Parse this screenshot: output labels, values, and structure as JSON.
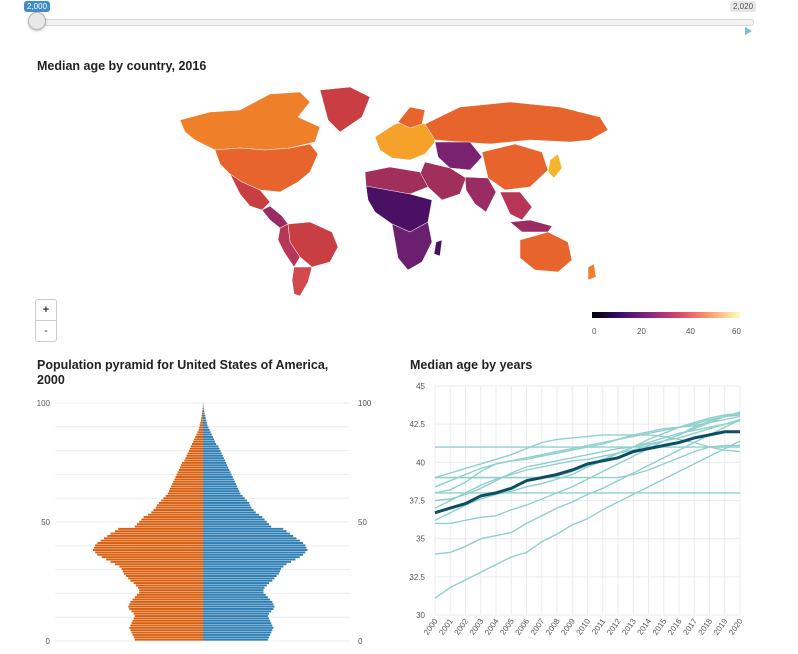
{
  "slider": {
    "min_label": "2,000",
    "max_label": "2,020"
  },
  "map": {
    "title": "Median age by country, 2016",
    "zoom_in": "+",
    "zoom_out": "-",
    "legend": {
      "ticks": [
        "0",
        "20",
        "40",
        "60"
      ]
    }
  },
  "pyramid": {
    "title": "Population pyramid for United States of America, 2000",
    "colors": {
      "left": "#d95f0e",
      "right": "#2f7fb5"
    },
    "y_ticks": [
      "0",
      "50",
      "100"
    ]
  },
  "chart_data": [
    {
      "type": "bar",
      "title": "Population pyramid for United States of America, 2000",
      "orientation": "horizontal-mirrored",
      "ylim": [
        0,
        100
      ],
      "series": [
        {
          "values": [
            0.62,
            0.63,
            0.64,
            0.65,
            0.66,
            0.67,
            0.66,
            0.65,
            0.64,
            0.63,
            0.62,
            0.63,
            0.65,
            0.67,
            0.68,
            0.67,
            0.66,
            0.64,
            0.62,
            0.6,
            0.58,
            0.58,
            0.59,
            0.61,
            0.63,
            0.66,
            0.68,
            0.7,
            0.72,
            0.73,
            0.74,
            0.76,
            0.8,
            0.84,
            0.88,
            0.92,
            0.96,
            0.98,
            1.0,
            0.99,
            0.98,
            0.96,
            0.93,
            0.9,
            0.87,
            0.84,
            0.8,
            0.77,
            0.62,
            0.6,
            0.58,
            0.56,
            0.54,
            0.5,
            0.47,
            0.45,
            0.43,
            0.42,
            0.4,
            0.38,
            0.36,
            0.34,
            0.32,
            0.31,
            0.3,
            0.29,
            0.28,
            0.27,
            0.26,
            0.25,
            0.24,
            0.23,
            0.22,
            0.21,
            0.2,
            0.19,
            0.17,
            0.16,
            0.15,
            0.14,
            0.13,
            0.12,
            0.11,
            0.1,
            0.09,
            0.08,
            0.07,
            0.06,
            0.05,
            0.04,
            0.035,
            0.03,
            0.025,
            0.02,
            0.016,
            0.012,
            0.009,
            0.006,
            0.004,
            0.002,
            0.001
          ]
        },
        {
          "values": [
            0.59,
            0.6,
            0.61,
            0.62,
            0.63,
            0.64,
            0.63,
            0.62,
            0.61,
            0.6,
            0.59,
            0.6,
            0.62,
            0.64,
            0.65,
            0.64,
            0.63,
            0.61,
            0.59,
            0.57,
            0.55,
            0.55,
            0.56,
            0.58,
            0.6,
            0.63,
            0.65,
            0.67,
            0.69,
            0.7,
            0.71,
            0.73,
            0.76,
            0.8,
            0.84,
            0.88,
            0.91,
            0.93,
            0.95,
            0.94,
            0.93,
            0.91,
            0.88,
            0.85,
            0.82,
            0.79,
            0.76,
            0.73,
            0.62,
            0.6,
            0.58,
            0.56,
            0.54,
            0.51,
            0.48,
            0.46,
            0.44,
            0.43,
            0.42,
            0.4,
            0.38,
            0.36,
            0.34,
            0.33,
            0.32,
            0.31,
            0.3,
            0.29,
            0.28,
            0.27,
            0.26,
            0.25,
            0.24,
            0.23,
            0.22,
            0.21,
            0.2,
            0.19,
            0.18,
            0.17,
            0.16,
            0.15,
            0.14,
            0.12,
            0.11,
            0.1,
            0.09,
            0.08,
            0.07,
            0.06,
            0.05,
            0.04,
            0.035,
            0.03,
            0.025,
            0.02,
            0.015,
            0.01,
            0.007,
            0.004,
            0.002
          ]
        }
      ]
    },
    {
      "type": "line",
      "title": "Median age by years",
      "x": [
        2000,
        2001,
        2002,
        2003,
        2004,
        2005,
        2006,
        2007,
        2008,
        2009,
        2010,
        2011,
        2012,
        2013,
        2014,
        2015,
        2016,
        2017,
        2018,
        2019,
        2020
      ],
      "x_ticks": [
        "2000",
        "2001",
        "2002",
        "2003",
        "2004",
        "2005",
        "2006",
        "2007",
        "2008",
        "2009",
        "2010",
        "2011",
        "2012",
        "2013",
        "2014",
        "2015",
        "2016",
        "2017",
        "2018",
        "2019",
        "2020"
      ],
      "y_ticks": [
        "30",
        "32.5",
        "35",
        "37.5",
        "40",
        "42.5",
        "45"
      ],
      "ylim": [
        30,
        45
      ],
      "grid": true,
      "highlight": {
        "values": [
          36.7,
          37.0,
          37.3,
          37.8,
          38.0,
          38.3,
          38.8,
          39.0,
          39.2,
          39.5,
          39.9,
          40.1,
          40.3,
          40.7,
          40.9,
          41.1,
          41.3,
          41.6,
          41.8,
          42.0,
          42.0
        ]
      },
      "series": [
        {
          "values": [
            31.1,
            31.8,
            32.3,
            32.8,
            33.3,
            33.8,
            34.1,
            34.8,
            35.3,
            35.9,
            36.3,
            36.9,
            37.4,
            37.9,
            38.4,
            38.9,
            39.4,
            39.9,
            40.4,
            40.9,
            41.4
          ]
        },
        {
          "values": [
            34.0,
            34.1,
            34.5,
            35.0,
            35.2,
            35.4,
            36.0,
            36.5,
            37.0,
            37.4,
            37.9,
            38.3,
            38.8,
            39.3,
            39.8,
            40.3,
            40.8,
            41.3,
            41.8,
            42.3,
            42.8
          ]
        },
        {
          "values": [
            36.0,
            36.0,
            36.2,
            36.4,
            36.5,
            36.9,
            37.2,
            37.6,
            38.0,
            38.4,
            38.9,
            39.4,
            39.9,
            40.4,
            40.9,
            41.4,
            41.8,
            42.3,
            42.7,
            43.0,
            43.1
          ]
        },
        {
          "values": [
            36.2,
            36.7,
            37.2,
            37.6,
            37.9,
            38.1,
            38.4,
            38.6,
            38.9,
            39.2,
            39.7,
            40.1,
            40.6,
            41.0,
            41.5,
            41.9,
            42.3,
            42.6,
            42.9,
            43.1,
            43.2
          ]
        },
        {
          "values": [
            37.0,
            37.5,
            38.0,
            38.5,
            38.9,
            39.2,
            39.5,
            39.7,
            39.9,
            40.1,
            40.2,
            40.4,
            40.6,
            40.8,
            41.1,
            41.4,
            41.8,
            42.2,
            42.6,
            43.0,
            43.2
          ]
        },
        {
          "values": [
            37.5,
            37.6,
            37.9,
            38.3,
            38.8,
            39.3,
            39.7,
            39.9,
            40.1,
            40.3,
            40.5,
            40.7,
            40.9,
            41.0,
            41.2,
            41.4,
            41.6,
            41.9,
            42.2,
            42.5,
            42.8
          ]
        },
        {
          "values": [
            38.0,
            38.2,
            38.7,
            39.4,
            39.9,
            40.1,
            40.2,
            40.4,
            40.6,
            40.8,
            41.0,
            41.2,
            41.5,
            41.8,
            42.0,
            42.2,
            42.3,
            42.4,
            42.6,
            42.8,
            43.0
          ]
        },
        {
          "values": [
            38.4,
            38.8,
            39.2,
            39.6,
            39.9,
            40.1,
            40.3,
            40.5,
            40.7,
            40.9,
            41.1,
            41.3,
            41.5,
            41.7,
            41.9,
            42.1,
            42.3,
            42.5,
            42.8,
            43.0,
            43.3
          ]
        },
        {
          "values": [
            39.0,
            39.0,
            39.0,
            39.0,
            39.0,
            39.0,
            39.0,
            39.0,
            39.1,
            39.4,
            39.8,
            40.2,
            40.6,
            41.0,
            41.3,
            41.6,
            41.9,
            42.1,
            42.3,
            42.5,
            42.7
          ]
        },
        {
          "values": [
            39.0,
            39.3,
            39.6,
            39.9,
            40.2,
            40.5,
            40.9,
            41.3,
            41.5,
            41.6,
            41.7,
            41.8,
            41.8,
            41.8,
            41.8,
            41.7,
            41.5,
            41.3,
            41.0,
            40.8,
            40.7
          ]
        },
        {
          "values": [
            39.0,
            39.0,
            39.0,
            39.0,
            39.0,
            39.0,
            39.0,
            39.0,
            39.0,
            39.0,
            39.0,
            39.0,
            39.0,
            39.2,
            39.5,
            39.9,
            40.3,
            40.7,
            41.0,
            41.1,
            41.1
          ]
        },
        {
          "values": [
            38.0,
            38.0,
            38.0,
            38.0,
            38.0,
            38.0,
            38.0,
            38.0,
            38.0,
            38.0,
            38.0,
            38.0,
            38.0,
            38.0,
            38.0,
            38.0,
            38.0,
            38.0,
            38.0,
            38.0,
            38.0
          ]
        },
        {
          "values": [
            41.0,
            41.0,
            41.0,
            41.0,
            41.0,
            41.0,
            41.0,
            41.0,
            41.0,
            41.0,
            41.0,
            41.0,
            41.0,
            41.0,
            41.0,
            41.0,
            41.0,
            41.0,
            41.0,
            41.0,
            41.0
          ]
        }
      ]
    }
  ]
}
